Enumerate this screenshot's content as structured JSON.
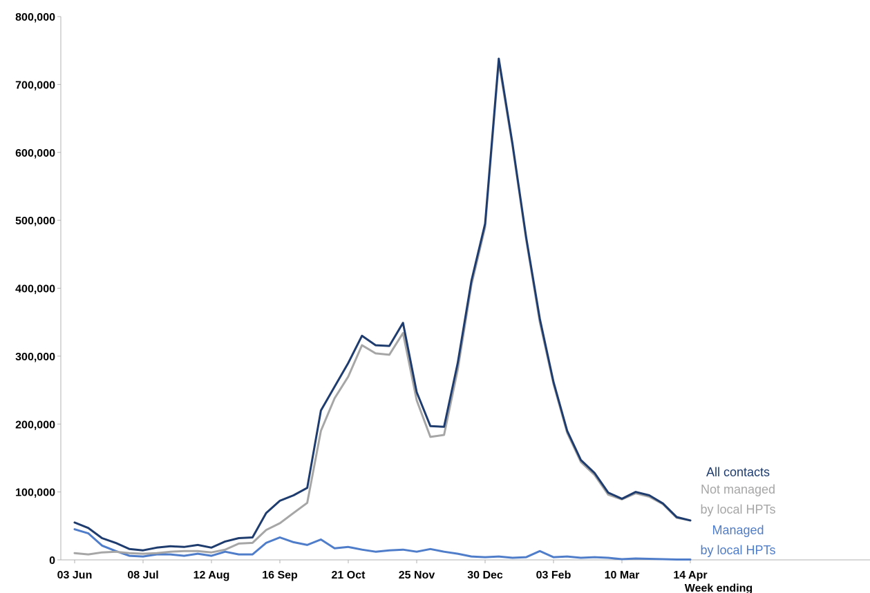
{
  "chart_data": {
    "type": "line",
    "title": "",
    "xlabel": "Week ending",
    "ylabel": "",
    "ylim": [
      0,
      800000
    ],
    "yticks": [
      0,
      100000,
      200000,
      300000,
      400000,
      500000,
      600000,
      700000,
      800000
    ],
    "ytick_labels": [
      "0",
      "100,000",
      "200,000",
      "300,000",
      "400,000",
      "500,000",
      "600,000",
      "700,000",
      "800,000"
    ],
    "x_tick_labels": [
      "03 Jun",
      "08 Jul",
      "12 Aug",
      "16 Sep",
      "21 Oct",
      "25 Nov",
      "30 Dec",
      "03 Feb",
      "10 Mar",
      "14 Apr"
    ],
    "x_tick_index": [
      0,
      5,
      10,
      15,
      20,
      25,
      30,
      35,
      40,
      45
    ],
    "weeks": 46,
    "grid": false,
    "legend_placement": "right, next to line ends",
    "series": [
      {
        "name": "All contacts",
        "legend_lines": [
          "All contacts"
        ],
        "color": "#1f3c6e",
        "values": [
          55000,
          47000,
          32000,
          25000,
          16000,
          14000,
          18000,
          20000,
          19000,
          22000,
          18000,
          27000,
          32000,
          33000,
          69000,
          87000,
          95000,
          106000,
          220000,
          255000,
          290000,
          330000,
          316000,
          315000,
          349000,
          247000,
          197000,
          196000,
          290000,
          411000,
          495000,
          738000,
          613000,
          475000,
          355000,
          262000,
          190000,
          147000,
          128000,
          99000,
          90000,
          100000,
          95000,
          83000,
          63000,
          58000
        ]
      },
      {
        "name": "Not managed by local HPTs",
        "legend_lines": [
          "Not managed",
          "by local HPTs"
        ],
        "color": "#a6a6a6",
        "values": [
          10000,
          8000,
          11000,
          12000,
          10000,
          9000,
          10000,
          12000,
          13000,
          13000,
          11000,
          15000,
          24000,
          25000,
          44000,
          54000,
          69000,
          84000,
          190000,
          238000,
          270000,
          316000,
          304000,
          302000,
          334000,
          235000,
          181000,
          184000,
          280000,
          405000,
          490000,
          733000,
          610000,
          472000,
          350000,
          259000,
          187000,
          144000,
          125000,
          96000,
          89000,
          98000,
          93000,
          82000,
          62000,
          58000
        ]
      },
      {
        "name": "Managed by local HPTs",
        "legend_lines": [
          "Managed",
          "by local HPTs"
        ],
        "color": "#4f7dc9",
        "values": [
          45000,
          39000,
          21000,
          13000,
          6000,
          5000,
          8000,
          8000,
          6000,
          9000,
          6000,
          12000,
          8000,
          8000,
          25000,
          33000,
          26000,
          22000,
          30000,
          17000,
          19000,
          15000,
          12000,
          14000,
          15000,
          12000,
          16000,
          12000,
          9000,
          5000,
          4000,
          5000,
          3000,
          4000,
          13000,
          4000,
          5000,
          3000,
          4000,
          3000,
          1000,
          2000,
          1500,
          1000,
          500,
          500
        ]
      }
    ]
  }
}
